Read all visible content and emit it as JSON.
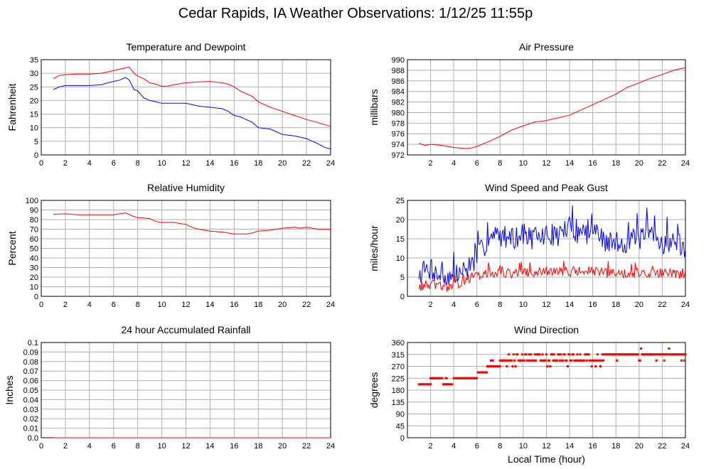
{
  "title": "Cedar Rapids, IA Weather Observations: 1/12/25 11:55p",
  "colors": {
    "red": "#ff0000",
    "blue": "#0000ff",
    "grid": "#b0b0b0"
  },
  "chart_data": [
    {
      "id": "temp",
      "type": "line",
      "title": "Temperature and Dewpoint",
      "xlabel": "",
      "ylabel": "Fahrenheit",
      "xlim": [
        0,
        24
      ],
      "ylim": [
        0,
        35
      ],
      "xticks": [
        0,
        2,
        4,
        6,
        8,
        10,
        12,
        14,
        16,
        18,
        20,
        22,
        24
      ],
      "yticks": [
        0,
        5,
        10,
        15,
        20,
        25,
        30,
        35
      ],
      "grid": true,
      "series": [
        {
          "name": "",
          "color": "#ff0000",
          "x": [
            1,
            1.5,
            2,
            3,
            4,
            5,
            5.5,
            6,
            6.5,
            7,
            7.3,
            7.7,
            8,
            8.5,
            9,
            9.5,
            10,
            10.5,
            11,
            12,
            13,
            14,
            15,
            15.5,
            16,
            16.5,
            17,
            17.5,
            18,
            19,
            20,
            21,
            22,
            23,
            24
          ],
          "y": [
            28,
            29.2,
            29.5,
            29.7,
            29.7,
            30,
            30.5,
            31,
            31.5,
            32,
            32.2,
            30,
            29,
            28,
            26.5,
            26,
            25.2,
            25.3,
            25.8,
            26.5,
            26.8,
            27,
            26.5,
            26,
            25,
            23.5,
            22.5,
            21.5,
            19.5,
            17.5,
            16,
            14.5,
            13,
            11.8,
            10.5
          ]
        },
        {
          "name": "",
          "color": "#0000ff",
          "x": [
            1,
            1.5,
            2,
            3,
            4,
            5,
            5.5,
            6,
            6.5,
            7,
            7.3,
            7.7,
            8,
            8.5,
            9,
            9.5,
            10,
            11,
            12,
            13,
            14,
            15,
            15.5,
            16,
            16.5,
            17,
            17.5,
            18,
            19,
            19.5,
            20,
            21,
            22,
            22.5,
            23,
            23.5,
            24
          ],
          "y": [
            24,
            25,
            25.5,
            25.5,
            25.5,
            25.8,
            26.5,
            27,
            27.5,
            28.5,
            27.5,
            24,
            23.5,
            21,
            20,
            19.5,
            19,
            19,
            19,
            18,
            17.5,
            17,
            16,
            14.5,
            14,
            13,
            12,
            10,
            9.5,
            8.5,
            7.5,
            7,
            6,
            5,
            4,
            2.8,
            2.2
          ]
        }
      ]
    },
    {
      "id": "pres",
      "type": "line",
      "title": "Air Pressure",
      "xlabel": "",
      "ylabel": "millibars",
      "xlim": [
        0,
        24
      ],
      "ylim": [
        972,
        990
      ],
      "xticks": [
        2,
        4,
        6,
        8,
        10,
        12,
        14,
        16,
        18,
        20,
        22,
        24
      ],
      "yticks": [
        972,
        974,
        976,
        978,
        980,
        982,
        984,
        986,
        988,
        990
      ],
      "grid": true,
      "series": [
        {
          "name": "",
          "color": "#ff0000",
          "x": [
            1,
            1.5,
            2,
            3,
            4,
            4.5,
            5,
            5.5,
            6,
            7,
            8,
            9,
            10,
            11,
            12,
            13,
            14,
            15,
            16,
            17,
            18,
            19,
            20,
            21,
            22,
            23,
            24
          ],
          "y": [
            974.2,
            973.8,
            974,
            973.8,
            973.4,
            973.3,
            973.2,
            973.3,
            973.6,
            974.5,
            975.5,
            976.7,
            977.5,
            978.2,
            978.5,
            979,
            979.5,
            980.5,
            981.5,
            982.5,
            983.5,
            984.8,
            985.6,
            986.5,
            987.2,
            988,
            988.5
          ]
        }
      ]
    },
    {
      "id": "rh",
      "type": "line",
      "title": "Relative Humidity",
      "xlabel": "",
      "ylabel": "Percent",
      "xlim": [
        0,
        24
      ],
      "ylim": [
        0,
        100
      ],
      "xticks": [
        0,
        2,
        4,
        6,
        8,
        10,
        12,
        14,
        16,
        18,
        20,
        22,
        24
      ],
      "yticks": [
        0,
        10,
        20,
        30,
        40,
        50,
        60,
        70,
        80,
        90,
        100
      ],
      "grid": true,
      "series": [
        {
          "name": "",
          "color": "#ff0000",
          "x": [
            1,
            2,
            3,
            4,
            5,
            6,
            6.5,
            7,
            7.5,
            8,
            9,
            9.5,
            10,
            11,
            12,
            12.5,
            13,
            13.5,
            14,
            15,
            15.5,
            16,
            16.5,
            17,
            17.5,
            18,
            19,
            20,
            21,
            21.5,
            22,
            23,
            24
          ],
          "y": [
            85.5,
            86,
            85,
            85,
            85,
            85,
            86,
            87,
            84,
            82,
            81,
            78,
            77,
            77,
            75,
            72,
            70,
            69,
            68,
            67,
            66,
            65,
            65,
            65,
            66,
            68,
            69,
            71,
            72,
            71,
            72,
            70,
            70
          ]
        }
      ]
    },
    {
      "id": "wind",
      "type": "line",
      "title": "Wind Speed and Peak Gust",
      "xlabel": "",
      "ylabel": "miles/hour",
      "xlim": [
        0,
        24
      ],
      "ylim": [
        0,
        25
      ],
      "xticks": [
        2,
        4,
        6,
        8,
        10,
        12,
        14,
        16,
        18,
        20,
        22,
        24
      ],
      "yticks": [
        0,
        5,
        10,
        15,
        20,
        25
      ],
      "grid": true,
      "series": [
        {
          "name": "",
          "color": "#0000ff",
          "x": [
            1,
            2,
            3,
            4,
            5,
            6,
            7,
            8,
            9,
            10,
            11,
            12,
            13,
            14,
            15,
            16,
            17,
            18,
            19,
            20,
            21,
            22,
            23,
            24
          ],
          "y": [
            6,
            7,
            5,
            5,
            7,
            10,
            15,
            16,
            15,
            16,
            15,
            16,
            16,
            18,
            16,
            17,
            14,
            14,
            14,
            15,
            16,
            14,
            14,
            13
          ],
          "noise": 3,
          "seed": 7
        },
        {
          "name": "",
          "color": "#ff0000",
          "x": [
            1,
            2,
            3,
            4,
            4.5,
            5,
            6,
            7,
            8,
            9,
            10,
            11,
            12,
            13,
            14,
            15,
            16,
            17,
            18,
            19,
            20,
            21,
            22,
            23,
            24
          ],
          "y": [
            2.5,
            3,
            2.5,
            2.5,
            3.5,
            4.5,
            5,
            6,
            6,
            6,
            6,
            6,
            6.5,
            6.5,
            6.5,
            6.5,
            6.5,
            6,
            6,
            6,
            6,
            6,
            6,
            6,
            5.5
          ],
          "noise": 1.3,
          "seed": 13
        }
      ]
    },
    {
      "id": "rain",
      "type": "line",
      "title": "24 hour Accumulated Rainfall",
      "xlabel": "",
      "ylabel": "Inches",
      "xlim": [
        0,
        24
      ],
      "ylim": [
        0,
        0.1
      ],
      "xticks": [
        0,
        2,
        4,
        6,
        8,
        10,
        12,
        14,
        16,
        18,
        20,
        22,
        24
      ],
      "yticks": [
        0.0,
        0.01,
        0.02,
        0.03,
        0.04,
        0.05,
        0.06,
        0.07,
        0.08,
        0.09,
        0.1
      ],
      "ytick_labels": [
        "0.0",
        "0.01",
        "0.02",
        "0.03",
        "0.04",
        "0.05",
        "0.06",
        "0.07",
        "0.08",
        "0.09",
        "0.1"
      ],
      "grid": true,
      "series": [
        {
          "name": "",
          "color": "#ff0000",
          "x": [
            1,
            24
          ],
          "y": [
            0,
            0
          ]
        }
      ]
    },
    {
      "id": "dir",
      "type": "scatter",
      "title": "Wind Direction",
      "xlabel": "Local Time (hour)",
      "ylabel": "degrees",
      "xlim": [
        0,
        24
      ],
      "ylim": [
        0,
        360
      ],
      "xticks": [
        2,
        4,
        6,
        8,
        10,
        12,
        14,
        16,
        18,
        20,
        22,
        24
      ],
      "yticks": [
        0,
        45,
        90,
        135,
        180,
        225,
        270,
        315,
        360
      ],
      "grid": true,
      "series": [
        {
          "name": "",
          "color": "#ff0000",
          "segments": [
            {
              "from": 1.0,
              "to": 2.0,
              "value": 202
            },
            {
              "from": 2.0,
              "to": 3.0,
              "value": 225
            },
            {
              "from": 3.1,
              "to": 3.9,
              "value": 202
            },
            {
              "from": 3.3,
              "to": 3.4,
              "value": 225
            },
            {
              "from": 4.0,
              "to": 6.0,
              "value": 225
            },
            {
              "from": 6.1,
              "to": 6.9,
              "value": 247
            },
            {
              "from": 6.9,
              "to": 8.0,
              "value": 270
            },
            {
              "from": 7.2,
              "to": 7.4,
              "value": 292
            }
          ],
          "late": {
            "from": 8.0,
            "to": 24.0,
            "values": [
              292,
              315
            ],
            "rare": [
              270,
              337
            ],
            "seed": 21
          }
        }
      ]
    }
  ]
}
